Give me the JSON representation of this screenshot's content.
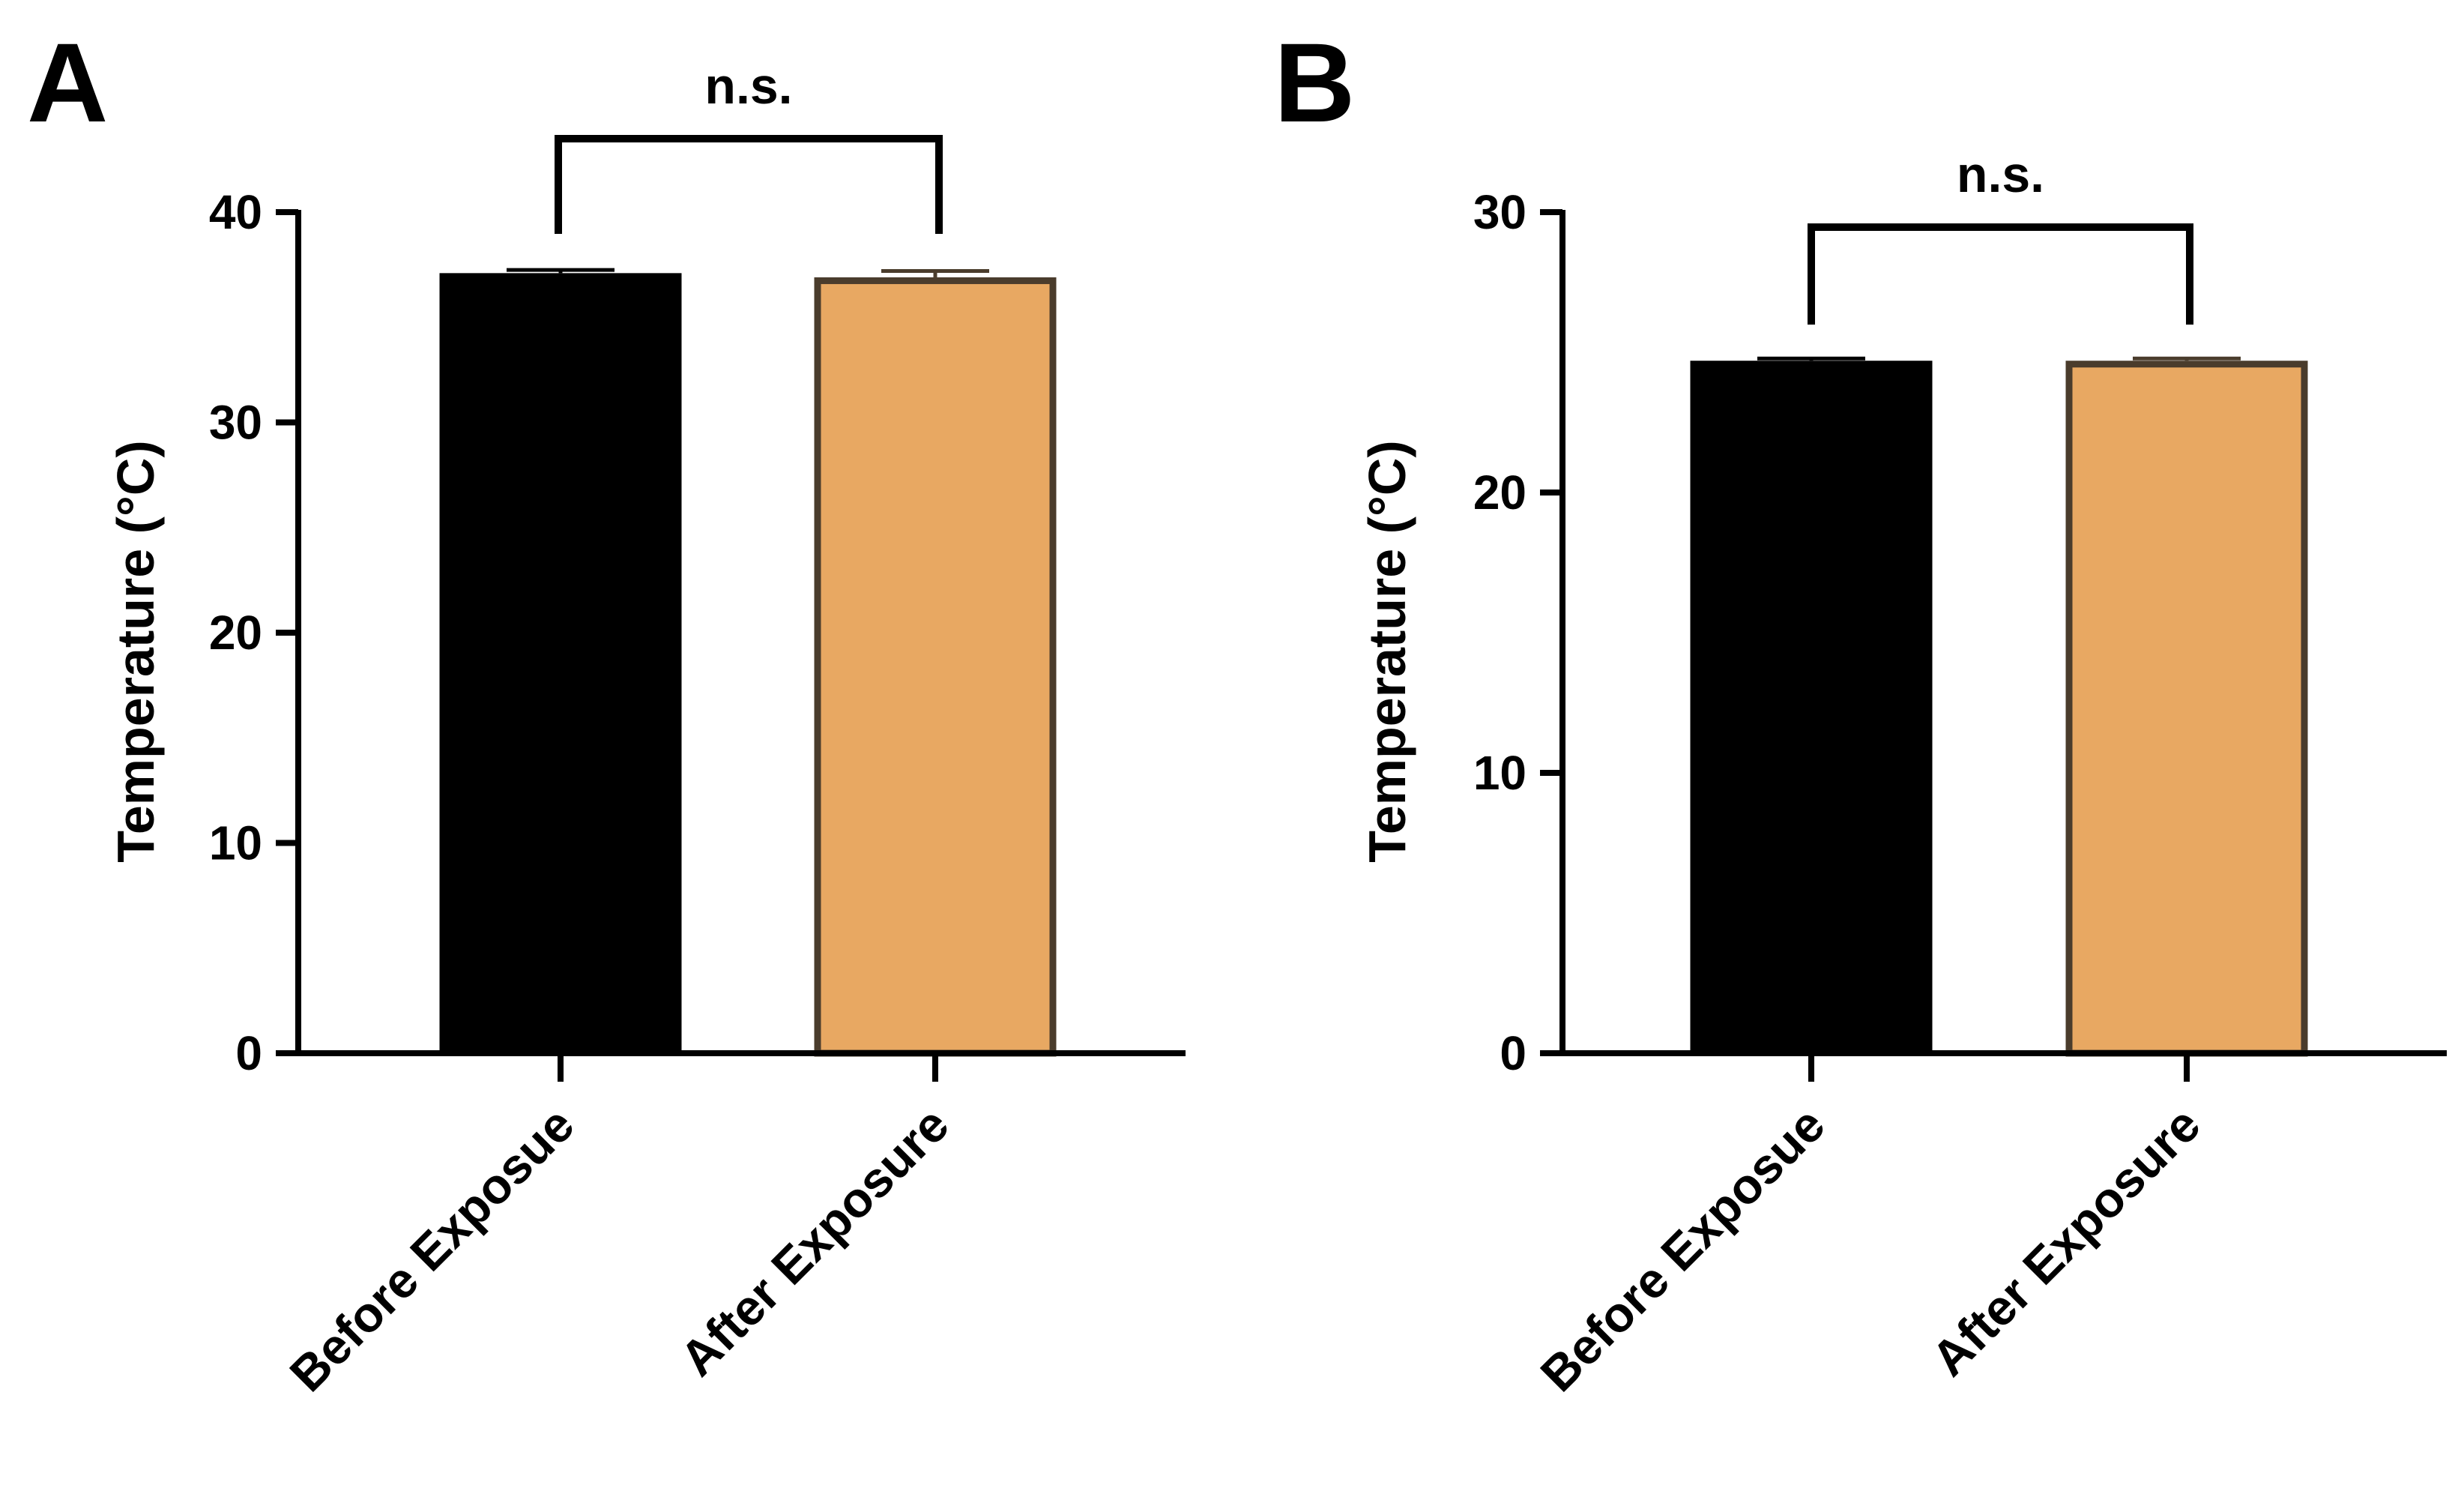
{
  "figure": {
    "colors": {
      "black": "#000000",
      "orange": "#E8A862",
      "outline": "#4A3C2C",
      "white": "#ffffff"
    }
  },
  "chart_data": [
    {
      "type": "bar",
      "panel": "A",
      "ylabel": "Temperature (°C)",
      "xlabel": "",
      "ylim": [
        0,
        40
      ],
      "yticks": [
        0,
        10,
        20,
        30,
        40
      ],
      "categories": [
        "Before Exposue",
        "After Exposure"
      ],
      "values": [
        37.1,
        36.9
      ],
      "errors": [
        0.15,
        0.3
      ],
      "significance": "n.s.",
      "bar_fill": [
        "#000000",
        "#E8A862"
      ],
      "bar_stroke": [
        "#000000",
        "#4A3C2C"
      ]
    },
    {
      "type": "bar",
      "panel": "B",
      "ylabel": "Temperature (°C)",
      "xlabel": "",
      "ylim": [
        0,
        30
      ],
      "yticks": [
        0,
        10,
        20,
        30
      ],
      "categories": [
        "Before Exposue",
        "After Exposure"
      ],
      "values": [
        24.7,
        24.7
      ],
      "errors": [
        0.08,
        0.08
      ],
      "significance": "n.s.",
      "bar_fill": [
        "#000000",
        "#E8A862"
      ],
      "bar_stroke": [
        "#000000",
        "#4A3C2C"
      ]
    }
  ]
}
